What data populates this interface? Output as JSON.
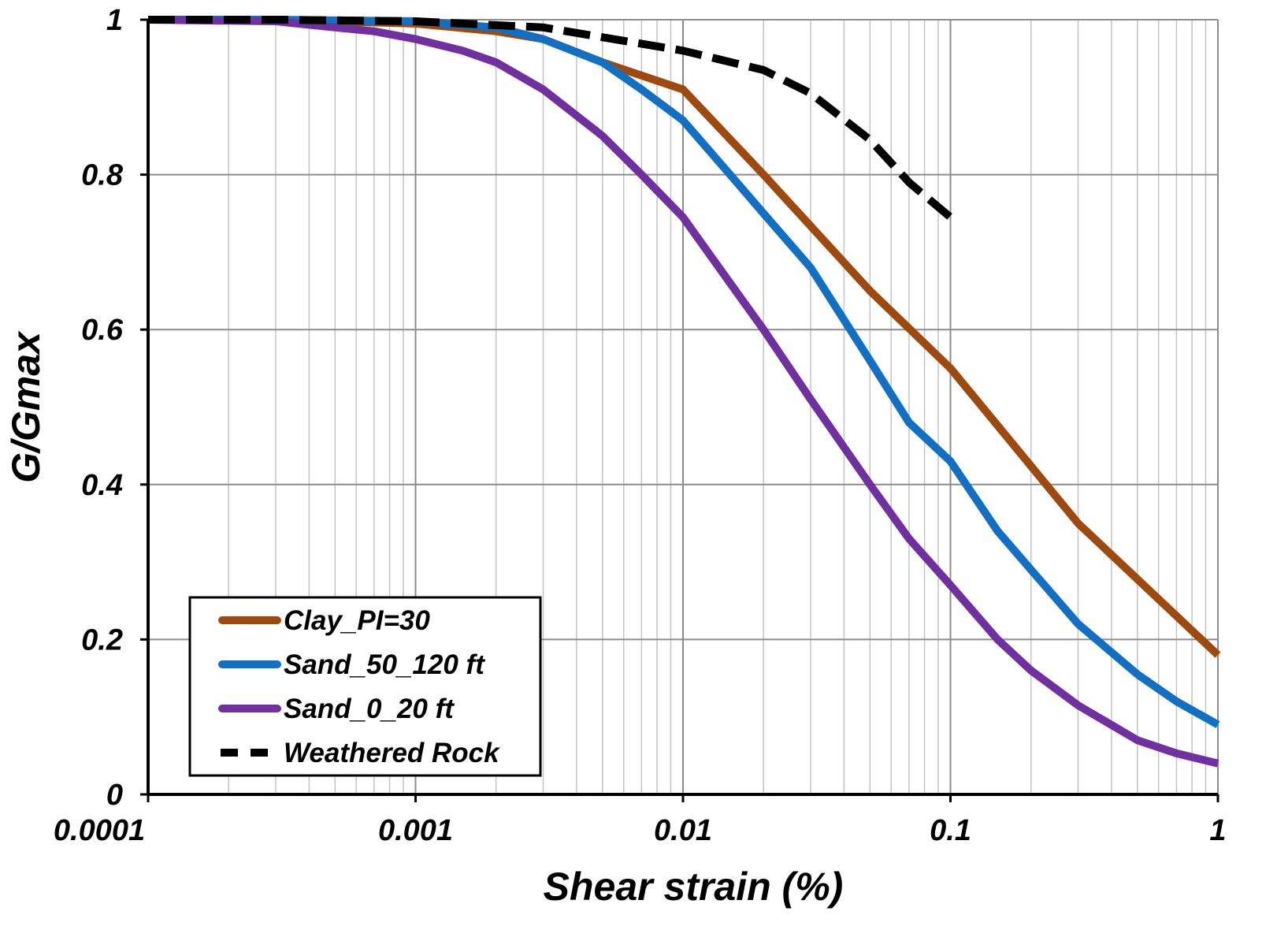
{
  "chart_data": {
    "type": "line",
    "xscale": "log",
    "xlabel": "Shear strain (%)",
    "ylabel": "G/Gmax",
    "xlim": [
      0.0001,
      1
    ],
    "ylim": [
      0,
      1
    ],
    "grid": true,
    "legend_position": "bottom-left",
    "x_ticks": [
      "0.0001",
      "0.001",
      "0.01",
      "0.1",
      "1"
    ],
    "y_ticks": [
      "0",
      "0.2",
      "0.4",
      "0.6",
      "0.8",
      "1"
    ],
    "series": [
      {
        "name": "Clay_PI=30",
        "color": "#9E4A0E",
        "dash": "solid",
        "x": [
          0.0001,
          0.0003,
          0.001,
          0.002,
          0.003,
          0.005,
          0.01,
          0.02,
          0.05,
          0.1,
          0.3,
          1
        ],
        "y": [
          1.0,
          1.0,
          0.995,
          0.985,
          0.975,
          0.945,
          0.91,
          0.8,
          0.65,
          0.55,
          0.35,
          0.18
        ]
      },
      {
        "name": "Sand_50_120 ft",
        "color": "#1170C4",
        "dash": "solid",
        "x": [
          0.0001,
          0.0003,
          0.001,
          0.002,
          0.003,
          0.005,
          0.007,
          0.01,
          0.015,
          0.02,
          0.03,
          0.05,
          0.07,
          0.1,
          0.15,
          0.2,
          0.3,
          0.5,
          0.7,
          1
        ],
        "y": [
          1.0,
          1.0,
          0.998,
          0.99,
          0.975,
          0.945,
          0.91,
          0.87,
          0.8,
          0.75,
          0.68,
          0.56,
          0.48,
          0.43,
          0.34,
          0.29,
          0.22,
          0.155,
          0.12,
          0.09
        ]
      },
      {
        "name": "Sand_0_20 ft",
        "color": "#7030A0",
        "dash": "solid",
        "x": [
          0.0001,
          0.0003,
          0.0005,
          0.0007,
          0.001,
          0.0015,
          0.002,
          0.003,
          0.005,
          0.007,
          0.01,
          0.015,
          0.02,
          0.03,
          0.05,
          0.07,
          0.1,
          0.15,
          0.2,
          0.3,
          0.5,
          0.7,
          1
        ],
        "y": [
          1.0,
          0.998,
          0.99,
          0.985,
          0.975,
          0.96,
          0.945,
          0.91,
          0.85,
          0.8,
          0.745,
          0.66,
          0.6,
          0.51,
          0.4,
          0.33,
          0.27,
          0.2,
          0.16,
          0.115,
          0.07,
          0.053,
          0.04
        ]
      },
      {
        "name": "Weathered Rock",
        "color": "#000000",
        "dash": "dashed",
        "x": [
          0.0001,
          0.0003,
          0.001,
          0.003,
          0.01,
          0.02,
          0.03,
          0.05,
          0.07,
          0.1
        ],
        "y": [
          1.0,
          1.0,
          0.998,
          0.99,
          0.96,
          0.935,
          0.905,
          0.845,
          0.79,
          0.745
        ]
      }
    ]
  }
}
